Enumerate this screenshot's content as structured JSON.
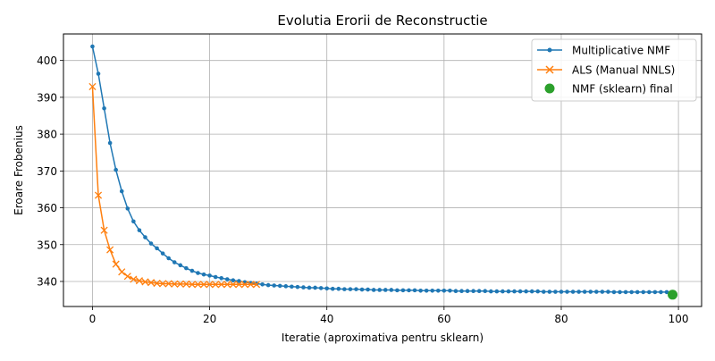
{
  "chart_data": {
    "type": "line",
    "title": "Evolutia Erorii de Reconstructie",
    "xlabel": "Iteratie (aproximativa pentru sklearn)",
    "ylabel": "Eroare Frobenius",
    "xlim": [
      -4.95,
      103.95
    ],
    "ylim": [
      333.2,
      407.2
    ],
    "xticks": [
      0,
      20,
      40,
      60,
      80,
      100
    ],
    "yticks": [
      340,
      350,
      360,
      370,
      380,
      390,
      400
    ],
    "grid": true,
    "legend_position": "top-right",
    "series": [
      {
        "name": "Multiplicative NMF",
        "color": "#1f77b4",
        "marker": "dot",
        "x": [
          0,
          1,
          2,
          3,
          4,
          5,
          6,
          7,
          8,
          9,
          10,
          11,
          12,
          13,
          14,
          15,
          16,
          17,
          18,
          19,
          20,
          21,
          22,
          23,
          24,
          25,
          26,
          27,
          28,
          29,
          30,
          31,
          32,
          33,
          34,
          35,
          36,
          37,
          38,
          39,
          40,
          41,
          42,
          43,
          44,
          45,
          46,
          47,
          48,
          49,
          50,
          51,
          52,
          53,
          54,
          55,
          56,
          57,
          58,
          59,
          60,
          61,
          62,
          63,
          64,
          65,
          66,
          67,
          68,
          69,
          70,
          71,
          72,
          73,
          74,
          75,
          76,
          77,
          78,
          79,
          80,
          81,
          82,
          83,
          84,
          85,
          86,
          87,
          88,
          89,
          90,
          91,
          92,
          93,
          94,
          95,
          96,
          97,
          98,
          99
        ],
        "y": [
          403.8,
          396.4,
          387.0,
          377.6,
          370.3,
          364.5,
          359.8,
          356.3,
          353.9,
          352.0,
          350.3,
          349.0,
          347.6,
          346.3,
          345.2,
          344.4,
          343.6,
          342.9,
          342.3,
          341.9,
          341.6,
          341.2,
          340.9,
          340.6,
          340.3,
          340.1,
          339.8,
          339.6,
          339.4,
          339.2,
          339.0,
          338.9,
          338.8,
          338.7,
          338.6,
          338.5,
          338.4,
          338.3,
          338.3,
          338.2,
          338.1,
          338.0,
          338.0,
          337.9,
          337.9,
          337.9,
          337.8,
          337.8,
          337.7,
          337.7,
          337.7,
          337.7,
          337.6,
          337.6,
          337.6,
          337.6,
          337.5,
          337.5,
          337.5,
          337.5,
          337.5,
          337.5,
          337.4,
          337.4,
          337.4,
          337.4,
          337.4,
          337.4,
          337.3,
          337.3,
          337.3,
          337.3,
          337.3,
          337.3,
          337.3,
          337.3,
          337.3,
          337.2,
          337.2,
          337.2,
          337.2,
          337.2,
          337.2,
          337.2,
          337.2,
          337.2,
          337.2,
          337.2,
          337.2,
          337.1,
          337.1,
          337.1,
          337.1,
          337.1,
          337.1,
          337.1,
          337.1,
          337.1,
          337.1,
          337.1
        ]
      },
      {
        "name": "ALS (Manual NNLS)",
        "color": "#ff7f0e",
        "marker": "x",
        "x": [
          0,
          1,
          2,
          3,
          4,
          5,
          6,
          7,
          8,
          9,
          10,
          11,
          12,
          13,
          14,
          15,
          16,
          17,
          18,
          19,
          20,
          21,
          22,
          23,
          24,
          25,
          26,
          27,
          28
        ],
        "y": [
          392.9,
          363.4,
          353.9,
          348.6,
          344.7,
          342.6,
          341.4,
          340.6,
          340.2,
          339.9,
          339.7,
          339.5,
          339.4,
          339.4,
          339.3,
          339.3,
          339.3,
          339.2,
          339.2,
          339.2,
          339.2,
          339.2,
          339.2,
          339.2,
          339.2,
          339.2,
          339.2,
          339.2,
          339.2
        ]
      },
      {
        "name": "NMF (sklearn) final",
        "color": "#2ca02c",
        "marker": "big-dot",
        "x": [
          99
        ],
        "y": [
          336.4
        ]
      }
    ]
  }
}
